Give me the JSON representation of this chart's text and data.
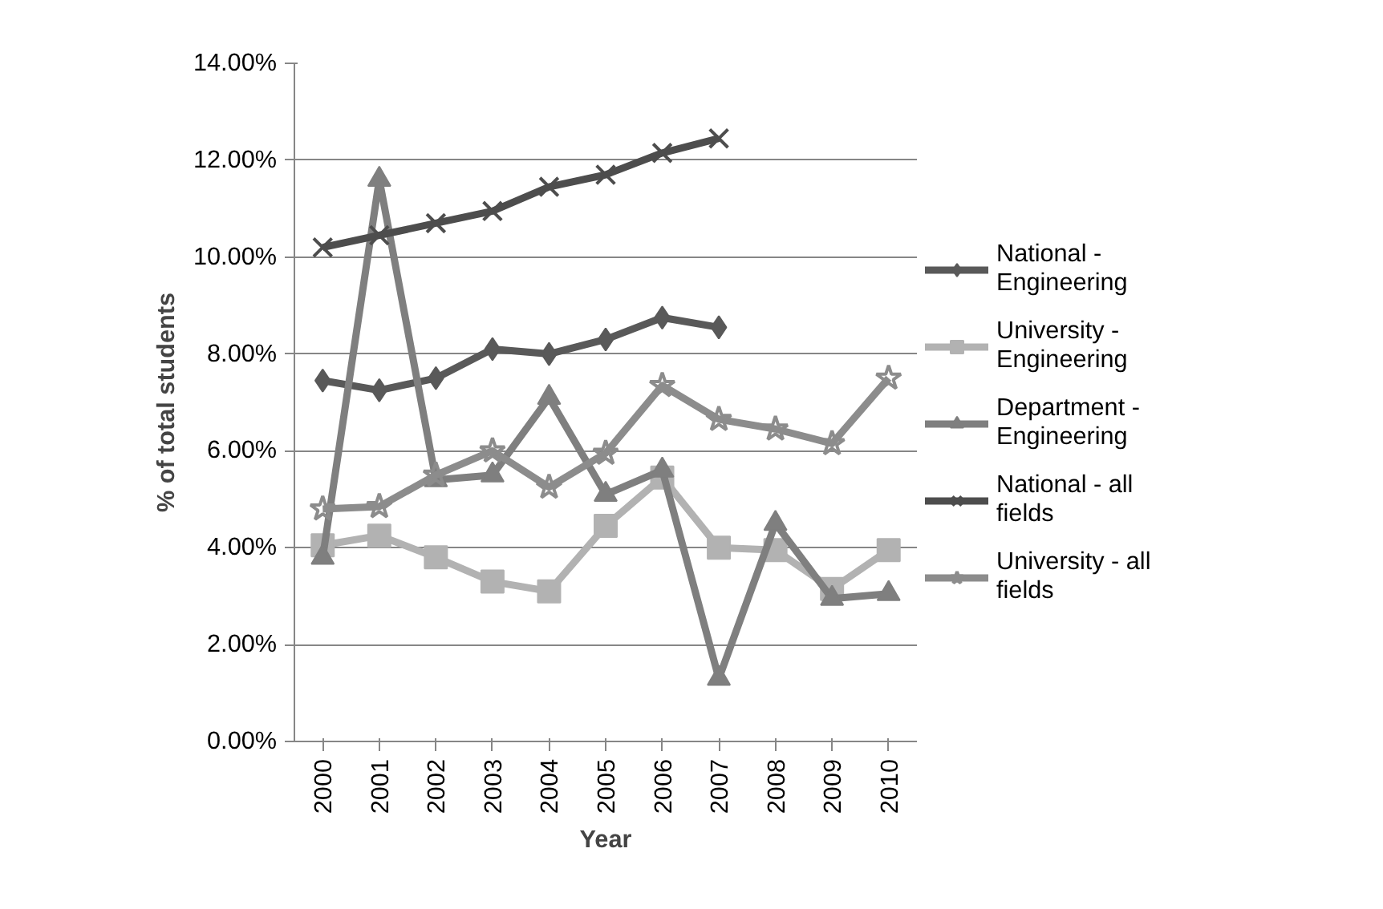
{
  "chart_data": {
    "type": "line",
    "xlabel": "Year",
    "ylabel": "% of total students",
    "categories": [
      "2000",
      "2001",
      "2002",
      "2003",
      "2004",
      "2005",
      "2006",
      "2007",
      "2008",
      "2009",
      "2010"
    ],
    "ylim": [
      0,
      14
    ],
    "yticks": [
      {
        "value": 0,
        "label": "0.00%"
      },
      {
        "value": 2,
        "label": "2.00%"
      },
      {
        "value": 4,
        "label": "4.00%"
      },
      {
        "value": 6,
        "label": "6.00%"
      },
      {
        "value": 8,
        "label": "8.00%"
      },
      {
        "value": 10,
        "label": "10.00%"
      },
      {
        "value": 12,
        "label": "12.00%"
      },
      {
        "value": 14,
        "label": "14.00%"
      }
    ],
    "grid": "y",
    "legend": "right",
    "series": [
      {
        "name": "National - Engineering",
        "color": "#595959",
        "marker": "diamond",
        "values": [
          7.45,
          7.25,
          7.5,
          8.1,
          8.0,
          8.3,
          8.75,
          8.55,
          null,
          null,
          null
        ]
      },
      {
        "name": "University - Engineering",
        "color": "#b2b2b2",
        "marker": "square",
        "values": [
          4.05,
          4.25,
          3.8,
          3.3,
          3.1,
          4.45,
          5.45,
          4.0,
          3.95,
          3.15,
          3.95
        ]
      },
      {
        "name": "Department - Engineering",
        "color": "#7f7f7f",
        "marker": "triangle",
        "values": [
          3.8,
          11.6,
          5.4,
          5.5,
          7.1,
          5.1,
          5.6,
          1.3,
          4.5,
          2.95,
          3.05
        ]
      },
      {
        "name": "National - all fields",
        "color": "#4d4d4d",
        "marker": "cross",
        "values": [
          10.2,
          10.45,
          10.7,
          10.95,
          11.45,
          11.7,
          12.15,
          12.45,
          null,
          null,
          null
        ]
      },
      {
        "name": "University - all fields",
        "color": "#8c8c8c",
        "marker": "star",
        "values": [
          4.8,
          4.85,
          5.5,
          6.0,
          5.25,
          5.95,
          7.35,
          6.65,
          6.45,
          6.15,
          7.5
        ]
      }
    ]
  }
}
